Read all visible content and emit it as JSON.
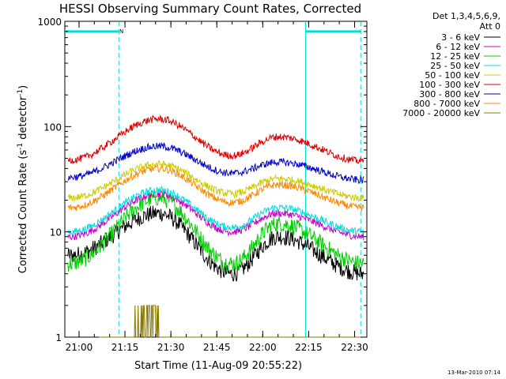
{
  "chart_data": {
    "type": "line",
    "title": "HESSI Observing Summary Count Rates, Corrected",
    "xlabel": "Start Time (11-Aug-09 20:55:22)",
    "ylabel": "Corrected Count Rate (s^-1 detector^-1)",
    "ylabel_parts": {
      "main": "Corrected Count Rate (s",
      "exp1": "-1",
      "mid": " detector",
      "exp2": "-1",
      "end": ")"
    },
    "y_scale": "log",
    "ylim": [
      1,
      1000
    ],
    "xlim": [
      "20:55:22",
      "22:34:00"
    ],
    "y_ticks": [
      "1",
      "10",
      "100",
      "1000"
    ],
    "x_ticks": [
      "21:00",
      "21:15",
      "21:30",
      "21:45",
      "22:00",
      "22:15",
      "22:30"
    ],
    "legend_header": [
      "Det 1,3,4,5,6,9,",
      "Att 0"
    ],
    "legend_placement": "right",
    "series": [
      {
        "name": "3 - 6 keV",
        "color": "#000000",
        "values": [
          6,
          15,
          4,
          9,
          4
        ]
      },
      {
        "name": "6 - 12 keV",
        "color": "#cc00cc",
        "values": [
          9,
          23,
          10,
          15,
          9
        ]
      },
      {
        "name": "12 - 25 keV",
        "color": "#00cc00",
        "values": [
          5,
          21,
          5,
          12,
          5
        ]
      },
      {
        "name": "25 - 50 keV",
        "color": "#00dddd",
        "values": [
          10,
          25,
          11,
          17,
          10
        ]
      },
      {
        "name": "50 - 100 keV",
        "color": "#cccc00",
        "values": [
          21,
          44,
          23,
          32,
          21
        ]
      },
      {
        "name": "100 - 300 keV",
        "color": "#dd0000",
        "values": [
          48,
          118,
          53,
          80,
          47
        ]
      },
      {
        "name": "300 - 800 keV",
        "color": "#0000cc",
        "values": [
          33,
          65,
          36,
          46,
          31
        ]
      },
      {
        "name": "800 - 7000 keV",
        "color": "#ff8800",
        "values": [
          17,
          40,
          19,
          28,
          17
        ]
      },
      {
        "name": "7000 - 20000 keV",
        "color": "#887700",
        "values": [
          1,
          2,
          1,
          1,
          1
        ]
      }
    ],
    "key_times": [
      "20:57",
      "21:26",
      "21:50",
      "22:05",
      "22:33"
    ],
    "annotations": {
      "night_flag": "N",
      "night_marker_y": 800,
      "night_intervals": [
        [
          "20:55:22",
          "21:13:00"
        ],
        [
          "22:14:00",
          "22:32:00"
        ]
      ],
      "saa_boundaries": [
        "21:13:00",
        "22:14:00",
        "22:32:00"
      ]
    },
    "grid": false
  },
  "timestamp": "13-Mar-2010 07:14"
}
